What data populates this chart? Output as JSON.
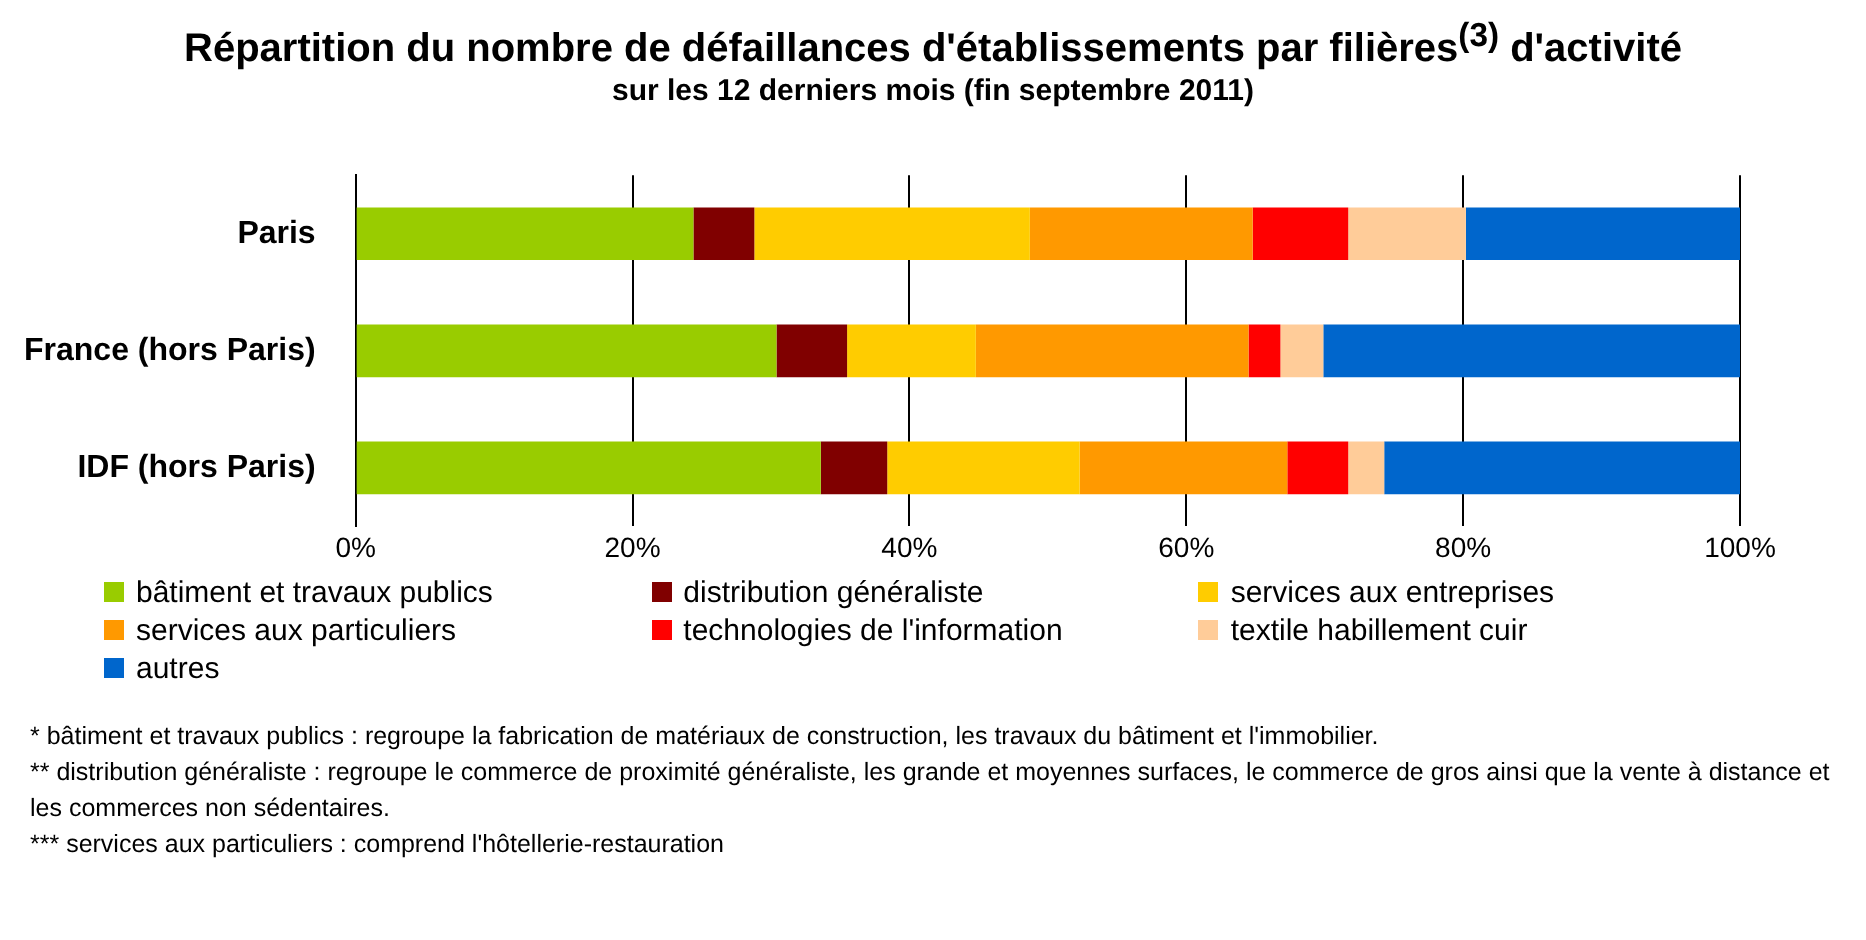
{
  "chart_data": {
    "type": "bar",
    "orientation": "horizontal",
    "stacked": true,
    "title": "Répartition du nombre de défaillances d'établissements par filières$^{(3)}$ d'activité",
    "subtitle": "sur les 12 derniers mois (fin septembre 2011)",
    "categories": [
      "Paris",
      "France (hors Paris)",
      "IDF (hors Paris)"
    ],
    "series": [
      {
        "name": "bâtiment et travaux publics",
        "color": "#99cc00",
        "values": [
          24.4,
          30.4,
          33.6
        ]
      },
      {
        "name": "distribution généraliste",
        "color": "#800000",
        "values": [
          4.4,
          5.1,
          4.8
        ]
      },
      {
        "name": "services aux entreprises",
        "color": "#ffcc00",
        "values": [
          19.9,
          9.3,
          13.9
        ]
      },
      {
        "name": "services aux particuliers",
        "color": "#ff9900",
        "values": [
          16.1,
          19.7,
          15.0
        ]
      },
      {
        "name": "technologies de l'information",
        "color": "#ff0000",
        "values": [
          6.9,
          2.3,
          4.4
        ]
      },
      {
        "name": "textile habillement cuir",
        "color": "#ffcc99",
        "values": [
          8.5,
          3.1,
          2.6
        ]
      },
      {
        "name": "autres",
        "color": "#0066cc",
        "values": [
          19.8,
          30.1,
          25.7
        ]
      }
    ],
    "xlim": [
      0,
      100
    ],
    "xticks": [
      {
        "value": 0,
        "label": "0%"
      },
      {
        "value": 20,
        "label": "20%"
      },
      {
        "value": 40,
        "label": "40%"
      },
      {
        "value": 60,
        "label": "60%"
      },
      {
        "value": 80,
        "label": "80%"
      },
      {
        "value": 100,
        "label": "100%"
      }
    ],
    "grid": "x",
    "legend": "bottom",
    "annotations": [
      "* bâtiment et travaux publics : regroupe la fabrication de matériaux de construction, les travaux du bâtiment et l'immobilier.",
      "** distribution généraliste : regroupe le commerce de proximité généraliste, les grande et moyennes surfaces, le commerce de gros ainsi que la vente à distance et les commerces non sédentaires.",
      "*** services aux particuliers : comprend l'hôtellerie-restauration"
    ]
  }
}
